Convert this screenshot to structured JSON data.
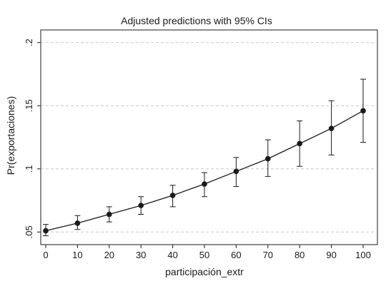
{
  "chart_data": {
    "type": "line",
    "title": "Adjusted predictions with 95% CIs",
    "xlabel": "participación_extr",
    "ylabel": "Pr(exportaciones)",
    "x": [
      0,
      10,
      20,
      30,
      40,
      50,
      60,
      70,
      80,
      90,
      100
    ],
    "x_ticks": [
      "0",
      "10",
      "20",
      "30",
      "40",
      "50",
      "60",
      "70",
      "80",
      "90",
      "100"
    ],
    "y_ticks": [
      ".05",
      ".1",
      ".15",
      ".2"
    ],
    "y_tick_values": [
      0.05,
      0.1,
      0.15,
      0.2
    ],
    "xlim": [
      0,
      100
    ],
    "ylim": [
      0.04,
      0.21
    ],
    "grid": true,
    "series": [
      {
        "values": [
          0.051,
          0.057,
          0.064,
          0.071,
          0.079,
          0.088,
          0.098,
          0.108,
          0.12,
          0.132,
          0.146
        ],
        "ci_lower": [
          0.047,
          0.052,
          0.058,
          0.064,
          0.07,
          0.078,
          0.086,
          0.094,
          0.102,
          0.111,
          0.121
        ],
        "ci_upper": [
          0.056,
          0.063,
          0.07,
          0.078,
          0.087,
          0.097,
          0.109,
          0.123,
          0.138,
          0.154,
          0.171
        ]
      }
    ],
    "colors": {
      "background": "#ffffff",
      "plot_background": "#ffffff",
      "grid": "#c8c8c8",
      "series": "#1a1a1a"
    }
  }
}
